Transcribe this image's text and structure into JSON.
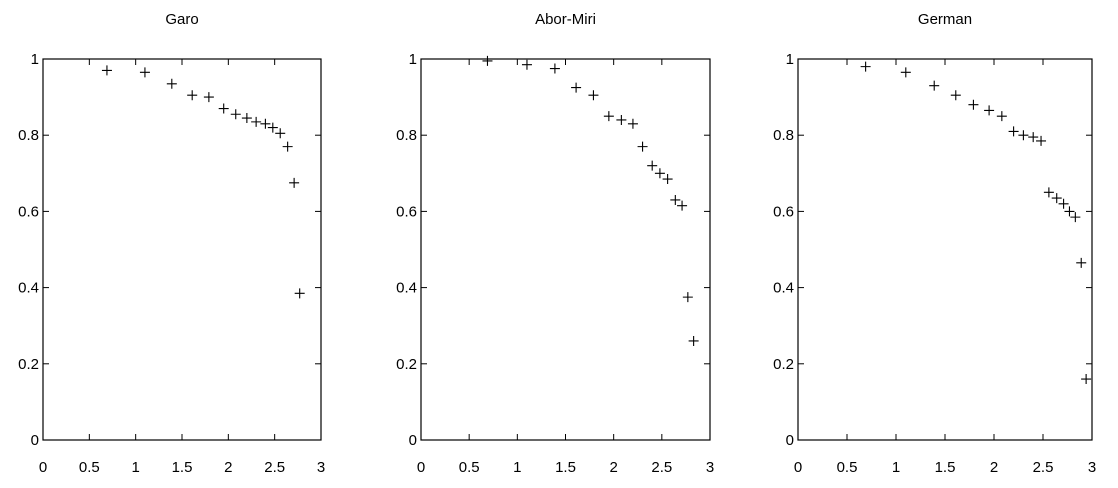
{
  "chart_data": [
    {
      "type": "scatter",
      "title": "Garo",
      "xlabel": "",
      "ylabel": "",
      "xlim": [
        0,
        3
      ],
      "ylim": [
        0,
        1
      ],
      "xticks": [
        "0",
        "0.5",
        "1",
        "1.5",
        "2",
        "2.5",
        "3"
      ],
      "yticks": [
        "0",
        "0.2",
        "0.4",
        "0.6",
        "0.8",
        "1"
      ],
      "grid": false,
      "marker": "plus",
      "color": "#000000",
      "x": [
        0.69,
        1.1,
        1.39,
        1.61,
        1.79,
        1.95,
        2.08,
        2.2,
        2.3,
        2.4,
        2.48,
        2.56,
        2.64,
        2.71,
        2.77
      ],
      "y": [
        0.97,
        0.965,
        0.935,
        0.905,
        0.9,
        0.87,
        0.855,
        0.845,
        0.835,
        0.83,
        0.82,
        0.805,
        0.77,
        0.675,
        0.385
      ]
    },
    {
      "type": "scatter",
      "title": "Abor-Miri",
      "xlabel": "",
      "ylabel": "",
      "xlim": [
        0,
        3
      ],
      "ylim": [
        0,
        1
      ],
      "xticks": [
        "0",
        "0.5",
        "1",
        "1.5",
        "2",
        "2.5",
        "3"
      ],
      "yticks": [
        "0",
        "0.2",
        "0.4",
        "0.6",
        "0.8",
        "1"
      ],
      "grid": false,
      "marker": "plus",
      "color": "#000000",
      "x": [
        0.69,
        1.1,
        1.39,
        1.61,
        1.79,
        1.95,
        2.08,
        2.2,
        2.3,
        2.4,
        2.48,
        2.56,
        2.64,
        2.71,
        2.77,
        2.83
      ],
      "y": [
        0.995,
        0.985,
        0.975,
        0.925,
        0.905,
        0.85,
        0.84,
        0.83,
        0.77,
        0.72,
        0.7,
        0.685,
        0.63,
        0.615,
        0.375,
        0.26
      ]
    },
    {
      "type": "scatter",
      "title": "German",
      "xlabel": "",
      "ylabel": "",
      "xlim": [
        0,
        3
      ],
      "ylim": [
        0,
        1
      ],
      "xticks": [
        "0",
        "0.5",
        "1",
        "1.5",
        "2",
        "2.5",
        "3"
      ],
      "yticks": [
        "0",
        "0.2",
        "0.4",
        "0.6",
        "0.8",
        "1"
      ],
      "grid": false,
      "marker": "plus",
      "color": "#000000",
      "x": [
        0.69,
        1.1,
        1.39,
        1.61,
        1.79,
        1.95,
        2.08,
        2.2,
        2.3,
        2.4,
        2.48,
        2.56,
        2.64,
        2.71,
        2.77,
        2.83,
        2.89,
        2.94
      ],
      "y": [
        0.98,
        0.965,
        0.93,
        0.905,
        0.88,
        0.865,
        0.85,
        0.81,
        0.8,
        0.795,
        0.785,
        0.65,
        0.635,
        0.62,
        0.6,
        0.585,
        0.465,
        0.16
      ]
    }
  ]
}
